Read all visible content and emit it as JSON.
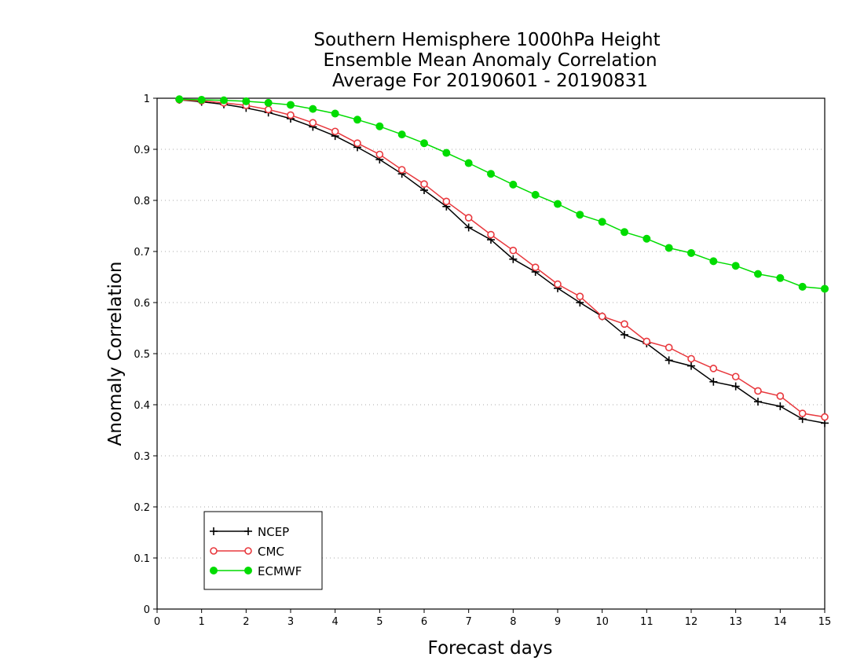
{
  "chart_data": {
    "type": "line",
    "title": [
      "Southern Hemisphere 1000hPa Height",
      "Ensemble Mean Anomaly Correlation",
      "Average For 20190601 - 20190831"
    ],
    "xlabel": "Forecast days",
    "ylabel": "Anomaly Correlation",
    "xlim": [
      0,
      15
    ],
    "ylim": [
      0,
      1
    ],
    "xticks": [
      "0",
      "1",
      "2",
      "3",
      "4",
      "5",
      "6",
      "7",
      "8",
      "9",
      "10",
      "11",
      "12",
      "13",
      "14",
      "15"
    ],
    "yticks": [
      "0",
      "0.1",
      "0.2",
      "0.3",
      "0.4",
      "0.5",
      "0.6",
      "0.7",
      "0.8",
      "0.9",
      "1"
    ],
    "grid": true,
    "legend_position": "lower-left",
    "x": [
      0.5,
      1.0,
      1.5,
      2.0,
      2.5,
      3.0,
      3.5,
      4.0,
      4.5,
      5.0,
      5.5,
      6.0,
      6.5,
      7.0,
      7.5,
      8.0,
      8.5,
      9.0,
      9.5,
      10.0,
      10.5,
      11.0,
      11.5,
      12.0,
      12.5,
      13.0,
      13.5,
      14.0,
      14.5,
      15.0
    ],
    "series": [
      {
        "name": "NCEP",
        "color": "#000000",
        "marker": "plus",
        "values": [
          0.997,
          0.993,
          0.988,
          0.981,
          0.972,
          0.96,
          0.944,
          0.926,
          0.904,
          0.88,
          0.852,
          0.82,
          0.788,
          0.747,
          0.723,
          0.685,
          0.66,
          0.628,
          0.6,
          0.573,
          0.537,
          0.52,
          0.487,
          0.476,
          0.445,
          0.436,
          0.406,
          0.397,
          0.372,
          0.364
        ]
      },
      {
        "name": "CMC",
        "color": "#e8383d",
        "marker": "open-circle",
        "values": [
          0.997,
          0.995,
          0.991,
          0.986,
          0.978,
          0.967,
          0.952,
          0.935,
          0.912,
          0.89,
          0.86,
          0.832,
          0.798,
          0.766,
          0.733,
          0.702,
          0.669,
          0.636,
          0.612,
          0.573,
          0.558,
          0.524,
          0.512,
          0.49,
          0.471,
          0.455,
          0.427,
          0.417,
          0.383,
          0.376
        ]
      },
      {
        "name": "ECMWF",
        "color": "#00dc00",
        "marker": "filled-circle",
        "values": [
          0.998,
          0.997,
          0.996,
          0.994,
          0.991,
          0.987,
          0.979,
          0.97,
          0.958,
          0.945,
          0.929,
          0.912,
          0.893,
          0.873,
          0.852,
          0.831,
          0.811,
          0.793,
          0.772,
          0.758,
          0.738,
          0.725,
          0.707,
          0.697,
          0.681,
          0.672,
          0.656,
          0.648,
          0.631,
          0.627
        ]
      }
    ]
  }
}
